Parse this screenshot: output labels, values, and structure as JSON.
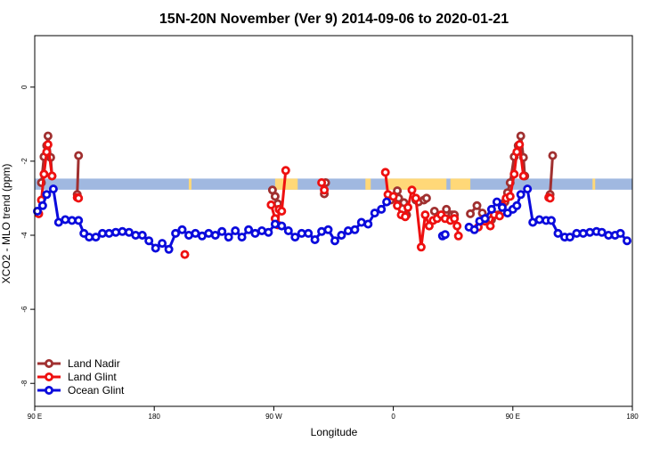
{
  "chart_data": {
    "type": "line",
    "title": "15N-20N November (Ver 9)   2014-09-06 to 2020-01-21",
    "xlabel": "Longitude",
    "ylabel": "XCO2 - MLO trend (ppm)",
    "xlim": [
      90,
      450
    ],
    "ylim": [
      -8.6,
      1.4
    ],
    "x_ticks": [
      {
        "value": 90,
        "label": "90 E"
      },
      {
        "value": 180,
        "label": "180"
      },
      {
        "value": 270,
        "label": "90 W"
      },
      {
        "value": 360,
        "label": "0"
      },
      {
        "value": 450,
        "label": "90 E"
      },
      {
        "value": 540,
        "label": "180"
      }
    ],
    "y_ticks": [
      {
        "value": 0,
        "label": "0"
      },
      {
        "value": -2,
        "label": "-2"
      },
      {
        "value": -4,
        "label": "-4"
      },
      {
        "value": -6,
        "label": "-6"
      },
      {
        "value": -8,
        "label": "-8"
      }
    ],
    "x_domain": [
      90,
      540
    ],
    "y_domain": [
      -8.62,
      1.39
    ],
    "grid": false,
    "legend_position": "bottom-left",
    "land_band": {
      "y_center": -2.62,
      "thickness": 0.3,
      "ocean_color": "#a0b8e0",
      "land_color": "#ffd878",
      "land_segments": [
        [
          206,
          208
        ],
        [
          271,
          288
        ],
        [
          339,
          343
        ],
        [
          355,
          400
        ],
        [
          403,
          418
        ],
        [
          510,
          512
        ]
      ]
    },
    "series": [
      {
        "name": "Land Nadir",
        "color": "#a03030",
        "points": [
          [
            95,
            -2.58
          ],
          [
            97,
            -1.88
          ],
          [
            99,
            -1.58
          ],
          [
            100,
            -1.32
          ],
          [
            102,
            -1.9
          ],
          [
            103,
            -2.4
          ],
          null,
          [
            122,
            -2.9
          ],
          [
            123,
            -1.85
          ],
          null,
          [
            269,
            -2.78
          ],
          [
            271,
            -2.95
          ],
          [
            273,
            -3.15
          ],
          [
            274,
            -3.3
          ],
          null,
          [
            308,
            -2.88
          ],
          [
            309,
            -2.58
          ],
          null,
          [
            358,
            -3.05
          ],
          [
            361,
            -2.95
          ],
          [
            363,
            -2.8
          ],
          [
            364,
            -3.0
          ],
          [
            368,
            -3.12
          ],
          [
            370,
            -3.45
          ],
          null,
          [
            377,
            -3.05
          ],
          [
            379,
            -3.1
          ],
          [
            383,
            -3.05
          ],
          [
            385,
            -3.0
          ],
          null,
          [
            391,
            -3.35
          ],
          [
            395,
            -3.48
          ],
          [
            400,
            -3.3
          ],
          [
            404,
            -3.45
          ],
          [
            406,
            -3.45
          ],
          null,
          [
            418,
            -3.42
          ],
          [
            423,
            -3.2
          ],
          [
            427,
            -3.4
          ],
          [
            432,
            -3.62
          ],
          [
            434,
            -3.58
          ],
          [
            439,
            -3.45
          ],
          [
            444,
            -3.1
          ],
          [
            446,
            -2.85
          ],
          [
            448,
            -2.58
          ],
          [
            451,
            -1.88
          ],
          [
            454,
            -1.58
          ],
          [
            456,
            -1.32
          ],
          [
            458,
            -1.9
          ],
          [
            459,
            -2.4
          ],
          null,
          [
            478,
            -2.9
          ],
          [
            480,
            -1.85
          ]
        ]
      },
      {
        "name": "Land Glint",
        "color": "#ee1010",
        "points": [
          [
            93,
            -3.42
          ],
          [
            95,
            -3.05
          ],
          [
            97,
            -2.35
          ],
          [
            99,
            -1.75
          ],
          [
            100,
            -1.55
          ],
          [
            103,
            -2.4
          ],
          null,
          [
            122,
            -2.98
          ],
          [
            123,
            -3.0
          ],
          null,
          [
            203,
            -4.52
          ],
          null,
          [
            268,
            -3.18
          ],
          [
            271,
            -3.55
          ],
          [
            273,
            -3.72
          ],
          [
            274,
            -3.3
          ],
          [
            276,
            -3.35
          ],
          [
            279,
            -2.25
          ],
          null,
          [
            306,
            -2.58
          ],
          [
            308,
            -2.78
          ],
          null,
          [
            354,
            -2.3
          ],
          [
            356,
            -2.9
          ],
          [
            360,
            -2.95
          ],
          [
            363,
            -3.2
          ],
          [
            366,
            -3.45
          ],
          [
            369,
            -3.5
          ],
          [
            371,
            -3.25
          ],
          [
            374,
            -2.78
          ],
          [
            377,
            -3.0
          ],
          [
            381,
            -4.32
          ],
          [
            384,
            -3.45
          ],
          [
            387,
            -3.75
          ],
          [
            390,
            -3.6
          ],
          [
            393,
            -3.55
          ],
          [
            396,
            -3.45
          ],
          [
            399,
            -3.55
          ],
          [
            403,
            -3.6
          ],
          [
            406,
            -3.55
          ],
          [
            408,
            -3.75
          ],
          [
            409,
            -4.02
          ],
          null,
          [
            424,
            -3.78
          ],
          [
            429,
            -3.62
          ],
          [
            433,
            -3.75
          ],
          [
            436,
            -3.45
          ],
          [
            440,
            -3.48
          ],
          [
            442,
            -3.2
          ],
          [
            445,
            -3.0
          ],
          [
            448,
            -2.95
          ],
          [
            451,
            -2.35
          ],
          [
            453,
            -1.75
          ],
          [
            455,
            -1.55
          ],
          [
            458,
            -2.4
          ],
          null,
          [
            477,
            -2.98
          ],
          [
            478,
            -3.0
          ]
        ]
      },
      {
        "name": "Ocean Glint",
        "color": "#0a0adc",
        "points": [
          [
            92,
            -3.35
          ],
          [
            96,
            -3.2
          ],
          [
            99,
            -2.9
          ],
          [
            104,
            -2.75
          ],
          [
            108,
            -3.65
          ],
          [
            113,
            -3.58
          ],
          [
            118,
            -3.6
          ],
          [
            123,
            -3.6
          ],
          [
            127,
            -3.95
          ],
          [
            131,
            -4.05
          ],
          [
            136,
            -4.05
          ],
          [
            141,
            -3.95
          ],
          [
            146,
            -3.95
          ],
          [
            151,
            -3.92
          ],
          [
            156,
            -3.9
          ],
          [
            161,
            -3.92
          ],
          [
            166,
            -4.0
          ],
          [
            171,
            -4.0
          ],
          [
            176,
            -4.15
          ],
          [
            181,
            -4.35
          ],
          [
            186,
            -4.22
          ],
          [
            191,
            -4.38
          ],
          [
            196,
            -3.95
          ],
          [
            201,
            -3.85
          ],
          [
            206,
            -4.0
          ],
          [
            211,
            -3.95
          ],
          [
            216,
            -4.02
          ],
          [
            221,
            -3.95
          ],
          [
            226,
            -4.0
          ],
          [
            231,
            -3.9
          ],
          [
            236,
            -4.05
          ],
          [
            241,
            -3.88
          ],
          [
            246,
            -4.05
          ],
          [
            251,
            -3.85
          ],
          [
            256,
            -3.95
          ],
          [
            261,
            -3.88
          ],
          [
            266,
            -3.92
          ],
          [
            271,
            -3.7
          ],
          [
            276,
            -3.75
          ],
          [
            281,
            -3.88
          ],
          [
            286,
            -4.05
          ],
          [
            291,
            -3.95
          ],
          [
            296,
            -3.95
          ],
          [
            301,
            -4.12
          ],
          [
            306,
            -3.9
          ],
          [
            311,
            -3.85
          ],
          [
            316,
            -4.15
          ],
          [
            321,
            -4.0
          ],
          [
            326,
            -3.88
          ],
          [
            331,
            -3.85
          ],
          [
            336,
            -3.65
          ],
          [
            341,
            -3.7
          ],
          [
            346,
            -3.4
          ],
          [
            351,
            -3.3
          ],
          [
            355,
            -3.1
          ],
          null,
          [
            397,
            -4.02
          ],
          [
            399,
            -3.98
          ],
          null,
          [
            417,
            -3.78
          ],
          [
            421,
            -3.85
          ],
          [
            425,
            -3.62
          ],
          [
            429,
            -3.55
          ],
          [
            434,
            -3.3
          ],
          [
            438,
            -3.1
          ],
          [
            442,
            -3.25
          ],
          [
            446,
            -3.4
          ],
          [
            450,
            -3.3
          ],
          [
            453,
            -3.2
          ],
          [
            456,
            -2.9
          ],
          [
            461,
            -2.75
          ],
          [
            465,
            -3.65
          ],
          [
            470,
            -3.58
          ],
          [
            475,
            -3.6
          ],
          [
            479,
            -3.6
          ],
          [
            484,
            -3.95
          ],
          [
            489,
            -4.05
          ],
          [
            493,
            -4.05
          ],
          [
            498,
            -3.95
          ],
          [
            503,
            -3.95
          ],
          [
            508,
            -3.92
          ],
          [
            513,
            -3.9
          ],
          [
            517,
            -3.92
          ],
          [
            522,
            -4.0
          ],
          [
            527,
            -4.0
          ],
          [
            531,
            -3.95
          ],
          [
            536,
            -4.15
          ]
        ]
      }
    ]
  }
}
